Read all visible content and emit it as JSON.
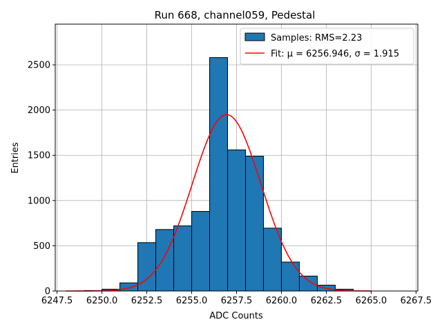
{
  "chart_data": {
    "type": "bar",
    "title": "Run 668, channel059, Pedestal",
    "xlabel": "ADC Counts",
    "ylabel": "Entries",
    "xlim": [
      6247.4,
      6267.6
    ],
    "ylim": [
      0,
      2950
    ],
    "grid": true,
    "legend_position": "top-right",
    "bins": [
      {
        "x0": 6249.0,
        "x1": 6250.0,
        "value": 5
      },
      {
        "x0": 6250.0,
        "x1": 6251.0,
        "value": 20
      },
      {
        "x0": 6251.0,
        "x1": 6252.0,
        "value": 90
      },
      {
        "x0": 6252.0,
        "x1": 6253.0,
        "value": 535
      },
      {
        "x0": 6253.0,
        "x1": 6254.0,
        "value": 680
      },
      {
        "x0": 6254.0,
        "x1": 6255.0,
        "value": 720
      },
      {
        "x0": 6255.0,
        "x1": 6256.0,
        "value": 880
      },
      {
        "x0": 6256.0,
        "x1": 6257.0,
        "value": 2580
      },
      {
        "x0": 6257.0,
        "x1": 6258.0,
        "value": 1560
      },
      {
        "x0": 6258.0,
        "x1": 6259.0,
        "value": 1490
      },
      {
        "x0": 6259.0,
        "x1": 6260.0,
        "value": 695
      },
      {
        "x0": 6260.0,
        "x1": 6261.0,
        "value": 320
      },
      {
        "x0": 6261.0,
        "x1": 6262.0,
        "value": 165
      },
      {
        "x0": 6262.0,
        "x1": 6263.0,
        "value": 65
      },
      {
        "x0": 6263.0,
        "x1": 6264.0,
        "value": 20
      }
    ],
    "fit": {
      "mu": 6256.946,
      "sigma": 1.915,
      "amplitude": 1950,
      "x_range": [
        6248.0,
        6265.0
      ]
    },
    "x_ticks": [
      "6247.5",
      "6250.0",
      "6252.5",
      "6255.0",
      "6257.5",
      "6260.0",
      "6262.5",
      "6265.0",
      "6267.5"
    ],
    "y_ticks": [
      "0",
      "500",
      "1000",
      "1500",
      "2000",
      "2500"
    ],
    "series": [
      {
        "name": "Samples: RMS=2.23",
        "kind": "histogram",
        "color": "#1f77b4"
      },
      {
        "name": "Fit: μ = 6256.946, σ = 1.915",
        "kind": "line",
        "color": "#ff0000"
      }
    ]
  }
}
